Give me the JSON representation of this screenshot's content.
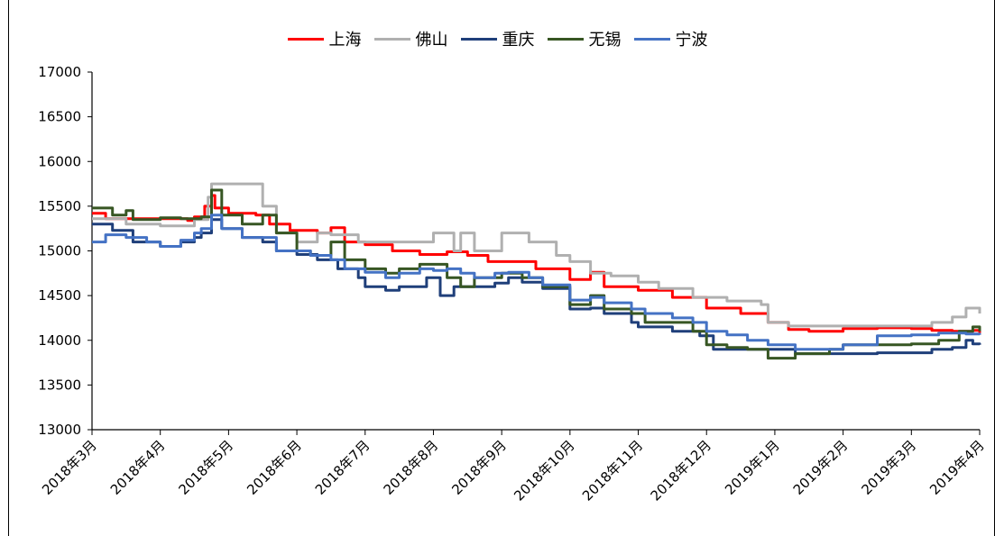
{
  "chart_data": {
    "type": "line",
    "title": "",
    "xlabel": "",
    "ylabel": "",
    "ylim": [
      13000,
      17000
    ],
    "yticks": [
      13000,
      13500,
      14000,
      14500,
      15000,
      15500,
      16000,
      16500,
      17000
    ],
    "xtick_labels": [
      "2018年3月",
      "2018年4月",
      "2018年5月",
      "2018年6月",
      "2018年7月",
      "2018年8月",
      "2018年9月",
      "2018年10月",
      "2018年11月",
      "2018年12月",
      "2019年1月",
      "2019年2月",
      "2019年3月",
      "2019年4月"
    ],
    "grid": false,
    "legend_position": "top",
    "series": [
      {
        "name": "上海",
        "color": "#ff0000",
        "points": [
          [
            0,
            15420
          ],
          [
            0.2,
            15360
          ],
          [
            1,
            15360
          ],
          [
            1.4,
            15340
          ],
          [
            1.5,
            15380
          ],
          [
            1.65,
            15500
          ],
          [
            1.75,
            15620
          ],
          [
            1.8,
            15480
          ],
          [
            2,
            15420
          ],
          [
            2.4,
            15400
          ],
          [
            2.6,
            15300
          ],
          [
            2.9,
            15230
          ],
          [
            3.3,
            15200
          ],
          [
            3.5,
            15260
          ],
          [
            3.7,
            15100
          ],
          [
            4,
            15070
          ],
          [
            4.4,
            15000
          ],
          [
            4.8,
            14960
          ],
          [
            5.2,
            14990
          ],
          [
            5.5,
            14950
          ],
          [
            5.8,
            14880
          ],
          [
            6,
            14880
          ],
          [
            6.5,
            14800
          ],
          [
            7,
            14680
          ],
          [
            7.3,
            14760
          ],
          [
            7.5,
            14600
          ],
          [
            7.9,
            14600
          ],
          [
            8,
            14560
          ],
          [
            8.5,
            14480
          ],
          [
            9,
            14360
          ],
          [
            9.5,
            14300
          ],
          [
            9.9,
            14200
          ],
          [
            10.2,
            14120
          ],
          [
            10.5,
            14100
          ],
          [
            11,
            14130
          ],
          [
            11.5,
            14140
          ],
          [
            12,
            14130
          ],
          [
            12.3,
            14110
          ],
          [
            12.6,
            14100
          ],
          [
            12.9,
            14110
          ],
          [
            13,
            14080
          ]
        ]
      },
      {
        "name": "佛山",
        "color": "#b0b0b0",
        "points": [
          [
            0,
            15360
          ],
          [
            0.5,
            15300
          ],
          [
            1,
            15280
          ],
          [
            1.5,
            15350
          ],
          [
            1.7,
            15600
          ],
          [
            1.75,
            15750
          ],
          [
            2,
            15750
          ],
          [
            2.4,
            15750
          ],
          [
            2.5,
            15500
          ],
          [
            2.7,
            15200
          ],
          [
            3,
            15100
          ],
          [
            3.3,
            15200
          ],
          [
            3.5,
            15180
          ],
          [
            3.9,
            15100
          ],
          [
            4.5,
            15100
          ],
          [
            5,
            15200
          ],
          [
            5.2,
            15200
          ],
          [
            5.3,
            15000
          ],
          [
            5.4,
            15200
          ],
          [
            5.6,
            15000
          ],
          [
            6,
            15200
          ],
          [
            6.4,
            15100
          ],
          [
            6.8,
            14950
          ],
          [
            7,
            14880
          ],
          [
            7.3,
            14750
          ],
          [
            7.6,
            14720
          ],
          [
            8,
            14650
          ],
          [
            8.3,
            14580
          ],
          [
            8.8,
            14480
          ],
          [
            9.3,
            14440
          ],
          [
            9.8,
            14400
          ],
          [
            9.9,
            14200
          ],
          [
            10.2,
            14160
          ],
          [
            10.8,
            14160
          ],
          [
            11.3,
            14160
          ],
          [
            11.8,
            14160
          ],
          [
            12.3,
            14200
          ],
          [
            12.6,
            14260
          ],
          [
            12.8,
            14360
          ],
          [
            12.9,
            14360
          ],
          [
            13,
            14300
          ]
        ]
      },
      {
        "name": "重庆",
        "color": "#1f3f7a",
        "points": [
          [
            0,
            15300
          ],
          [
            0.3,
            15230
          ],
          [
            0.6,
            15100
          ],
          [
            1,
            15050
          ],
          [
            1.3,
            15100
          ],
          [
            1.5,
            15150
          ],
          [
            1.6,
            15200
          ],
          [
            1.75,
            15350
          ],
          [
            1.9,
            15250
          ],
          [
            2.2,
            15150
          ],
          [
            2.5,
            15100
          ],
          [
            2.7,
            15000
          ],
          [
            3,
            14960
          ],
          [
            3.3,
            14900
          ],
          [
            3.6,
            14800
          ],
          [
            3.9,
            14700
          ],
          [
            4,
            14600
          ],
          [
            4.3,
            14560
          ],
          [
            4.5,
            14600
          ],
          [
            4.7,
            14600
          ],
          [
            4.9,
            14700
          ],
          [
            5.1,
            14500
          ],
          [
            5.3,
            14600
          ],
          [
            5.6,
            14600
          ],
          [
            5.9,
            14640
          ],
          [
            6.1,
            14700
          ],
          [
            6.3,
            14650
          ],
          [
            6.6,
            14580
          ],
          [
            7,
            14350
          ],
          [
            7.3,
            14360
          ],
          [
            7.5,
            14300
          ],
          [
            7.9,
            14200
          ],
          [
            8,
            14150
          ],
          [
            8.5,
            14100
          ],
          [
            8.9,
            14050
          ],
          [
            9.1,
            13900
          ],
          [
            9.5,
            13900
          ],
          [
            9.9,
            13900
          ],
          [
            10.3,
            13850
          ],
          [
            11,
            13850
          ],
          [
            11.5,
            13860
          ],
          [
            12,
            13860
          ],
          [
            12.3,
            13900
          ],
          [
            12.6,
            13920
          ],
          [
            12.8,
            14000
          ],
          [
            12.9,
            13960
          ],
          [
            13,
            13950
          ]
        ]
      },
      {
        "name": "无锡",
        "color": "#375623",
        "points": [
          [
            0,
            15480
          ],
          [
            0.3,
            15400
          ],
          [
            0.5,
            15450
          ],
          [
            0.6,
            15350
          ],
          [
            1,
            15370
          ],
          [
            1.3,
            15360
          ],
          [
            1.6,
            15380
          ],
          [
            1.75,
            15680
          ],
          [
            1.9,
            15400
          ],
          [
            2.2,
            15300
          ],
          [
            2.5,
            15400
          ],
          [
            2.7,
            15200
          ],
          [
            3,
            15000
          ],
          [
            3.2,
            14950
          ],
          [
            3.5,
            15100
          ],
          [
            3.7,
            14900
          ],
          [
            4,
            14800
          ],
          [
            4.3,
            14750
          ],
          [
            4.5,
            14800
          ],
          [
            4.8,
            14850
          ],
          [
            5,
            14850
          ],
          [
            5.2,
            14700
          ],
          [
            5.4,
            14600
          ],
          [
            5.6,
            14700
          ],
          [
            5.8,
            14700
          ],
          [
            6,
            14750
          ],
          [
            6.3,
            14700
          ],
          [
            6.6,
            14600
          ],
          [
            7,
            14400
          ],
          [
            7.3,
            14500
          ],
          [
            7.5,
            14350
          ],
          [
            7.9,
            14300
          ],
          [
            8.1,
            14200
          ],
          [
            8.5,
            14200
          ],
          [
            8.8,
            14100
          ],
          [
            9,
            13950
          ],
          [
            9.3,
            13920
          ],
          [
            9.6,
            13900
          ],
          [
            9.9,
            13800
          ],
          [
            10.3,
            13850
          ],
          [
            10.8,
            13900
          ],
          [
            11,
            13950
          ],
          [
            11.5,
            13950
          ],
          [
            12,
            13960
          ],
          [
            12.4,
            14000
          ],
          [
            12.7,
            14100
          ],
          [
            12.9,
            14150
          ],
          [
            13,
            14100
          ]
        ]
      },
      {
        "name": "宁波",
        "color": "#4472c4",
        "points": [
          [
            0,
            15100
          ],
          [
            0.2,
            15180
          ],
          [
            0.5,
            15150
          ],
          [
            0.8,
            15100
          ],
          [
            1,
            15050
          ],
          [
            1.3,
            15120
          ],
          [
            1.5,
            15200
          ],
          [
            1.6,
            15250
          ],
          [
            1.75,
            15400
          ],
          [
            1.9,
            15250
          ],
          [
            2.2,
            15150
          ],
          [
            2.5,
            15150
          ],
          [
            2.7,
            15000
          ],
          [
            3,
            15000
          ],
          [
            3.2,
            14950
          ],
          [
            3.5,
            14900
          ],
          [
            3.7,
            14800
          ],
          [
            4,
            14760
          ],
          [
            4.3,
            14700
          ],
          [
            4.5,
            14750
          ],
          [
            4.8,
            14800
          ],
          [
            5,
            14780
          ],
          [
            5.2,
            14800
          ],
          [
            5.4,
            14750
          ],
          [
            5.6,
            14700
          ],
          [
            5.9,
            14750
          ],
          [
            6.1,
            14760
          ],
          [
            6.4,
            14700
          ],
          [
            6.6,
            14620
          ],
          [
            7,
            14450
          ],
          [
            7.3,
            14480
          ],
          [
            7.5,
            14420
          ],
          [
            7.9,
            14350
          ],
          [
            8.1,
            14300
          ],
          [
            8.5,
            14250
          ],
          [
            8.8,
            14200
          ],
          [
            9,
            14100
          ],
          [
            9.3,
            14060
          ],
          [
            9.6,
            14000
          ],
          [
            9.9,
            13950
          ],
          [
            10.3,
            13900
          ],
          [
            10.7,
            13900
          ],
          [
            11,
            13950
          ],
          [
            11.5,
            14050
          ],
          [
            12,
            14060
          ],
          [
            12.4,
            14080
          ],
          [
            12.8,
            14070
          ],
          [
            13,
            14060
          ]
        ]
      }
    ]
  }
}
